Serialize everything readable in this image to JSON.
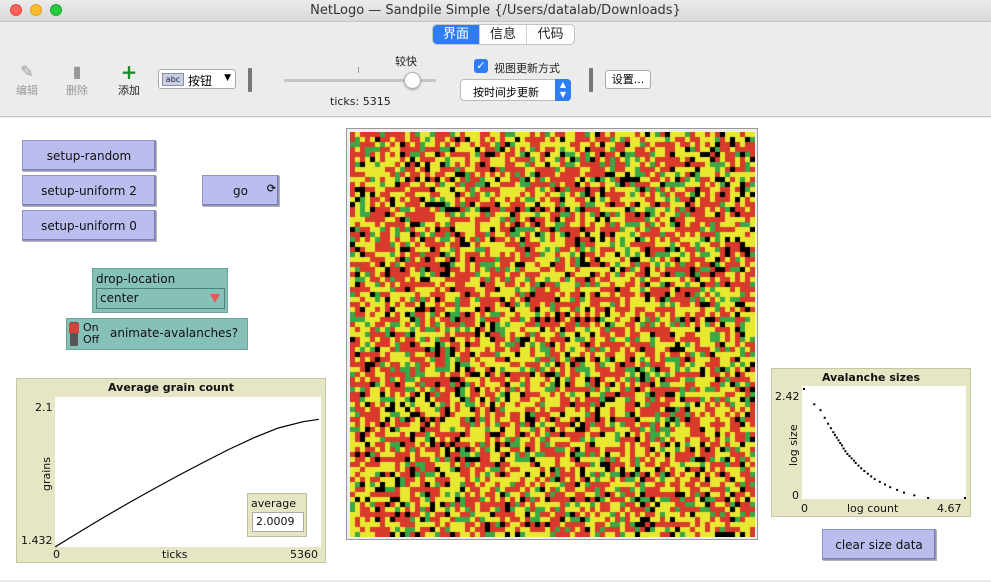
{
  "window": {
    "title": "NetLogo — Sandpile Simple {/Users/datalab/Downloads}"
  },
  "tabs": [
    {
      "label": "界面",
      "active": true
    },
    {
      "label": "信息",
      "active": false
    },
    {
      "label": "代码",
      "active": false
    }
  ],
  "toolbar": {
    "edit_label": "编辑",
    "delete_label": "删除",
    "add_label": "添加",
    "widget_type": {
      "icon_text": "abc",
      "label": "按钮"
    },
    "speed_label": "较快",
    "ticks_label": "ticks: 5315",
    "view_updates_label": "视图更新方式",
    "view_updates_checked": true,
    "update_mode": "按时间步更新",
    "settings_label": "设置..."
  },
  "buttons": {
    "setup_random": "setup-random",
    "setup_uniform_2": "setup-uniform 2",
    "setup_uniform_0": "setup-uniform 0",
    "go": "go",
    "go_forever_icon": "cycle-arrows-icon",
    "clear_size_data": "clear size data"
  },
  "chooser": {
    "name": "drop-location",
    "value": "center"
  },
  "switch": {
    "name": "animate-avalanches?",
    "on_label": "On",
    "off_label": "Off",
    "state": "off"
  },
  "plot_average": {
    "title": "Average grain count",
    "ymax": "2.1",
    "ymin": "1.432",
    "xmin": "0",
    "xmax": "5360",
    "xlabel": "ticks",
    "ylabel": "grains"
  },
  "monitor_average": {
    "label": "average",
    "value": "2.0009"
  },
  "plot_avalanche": {
    "title": "Avalanche sizes",
    "ymax": "2.42",
    "ymin": "0",
    "xmin": "0",
    "xmax": "4.67",
    "xlabel": "log count",
    "ylabel": "log size"
  },
  "world": {
    "patch_colors": [
      "#000000",
      "#3aa845",
      "#e8e831",
      "#d93a2b"
    ],
    "patch_weights": [
      0.1,
      0.13,
      0.39,
      0.38
    ],
    "patches_per_side": 81
  },
  "colors": {
    "button_bg": "#babded",
    "widget_teal": "#86c1b8",
    "plot_bg": "#e7e6c4",
    "tab_active": "#2f7df6"
  },
  "chart_data": [
    {
      "type": "line",
      "title": "Average grain count",
      "xlabel": "ticks",
      "ylabel": "grains",
      "xlim": [
        0,
        5360
      ],
      "ylim": [
        1.432,
        2.1
      ],
      "series": [
        {
          "x": [
            0,
            500,
            1000,
            1500,
            2000,
            2500,
            3000,
            3500,
            4000,
            4500,
            5000,
            5315
          ],
          "values": [
            1.432,
            1.5,
            1.566,
            1.63,
            1.692,
            1.752,
            1.81,
            1.866,
            1.918,
            1.962,
            1.99,
            2.0009
          ]
        }
      ]
    },
    {
      "type": "scatter",
      "title": "Avalanche sizes",
      "xlabel": "log count",
      "ylabel": "log size",
      "xlim": [
        0,
        4.67
      ],
      "ylim": [
        0,
        2.42
      ],
      "points": [
        [
          0.0,
          2.42
        ],
        [
          0.3,
          2.08
        ],
        [
          0.48,
          1.95
        ],
        [
          0.6,
          1.78
        ],
        [
          0.7,
          1.65
        ],
        [
          0.78,
          1.55
        ],
        [
          0.85,
          1.46
        ],
        [
          0.9,
          1.4
        ],
        [
          0.95,
          1.34
        ],
        [
          1.0,
          1.28
        ],
        [
          1.05,
          1.22
        ],
        [
          1.1,
          1.17
        ],
        [
          1.15,
          1.1
        ],
        [
          1.2,
          1.04
        ],
        [
          1.26,
          0.98
        ],
        [
          1.32,
          0.93
        ],
        [
          1.38,
          0.88
        ],
        [
          1.45,
          0.83
        ],
        [
          1.5,
          0.78
        ],
        [
          1.58,
          0.72
        ],
        [
          1.66,
          0.66
        ],
        [
          1.75,
          0.6
        ],
        [
          1.85,
          0.54
        ],
        [
          1.95,
          0.48
        ],
        [
          2.05,
          0.42
        ],
        [
          2.2,
          0.36
        ],
        [
          2.35,
          0.3
        ],
        [
          2.5,
          0.24
        ],
        [
          2.7,
          0.18
        ],
        [
          2.9,
          0.12
        ],
        [
          3.2,
          0.06
        ],
        [
          3.6,
          0.0
        ],
        [
          4.67,
          0.0
        ]
      ]
    }
  ]
}
